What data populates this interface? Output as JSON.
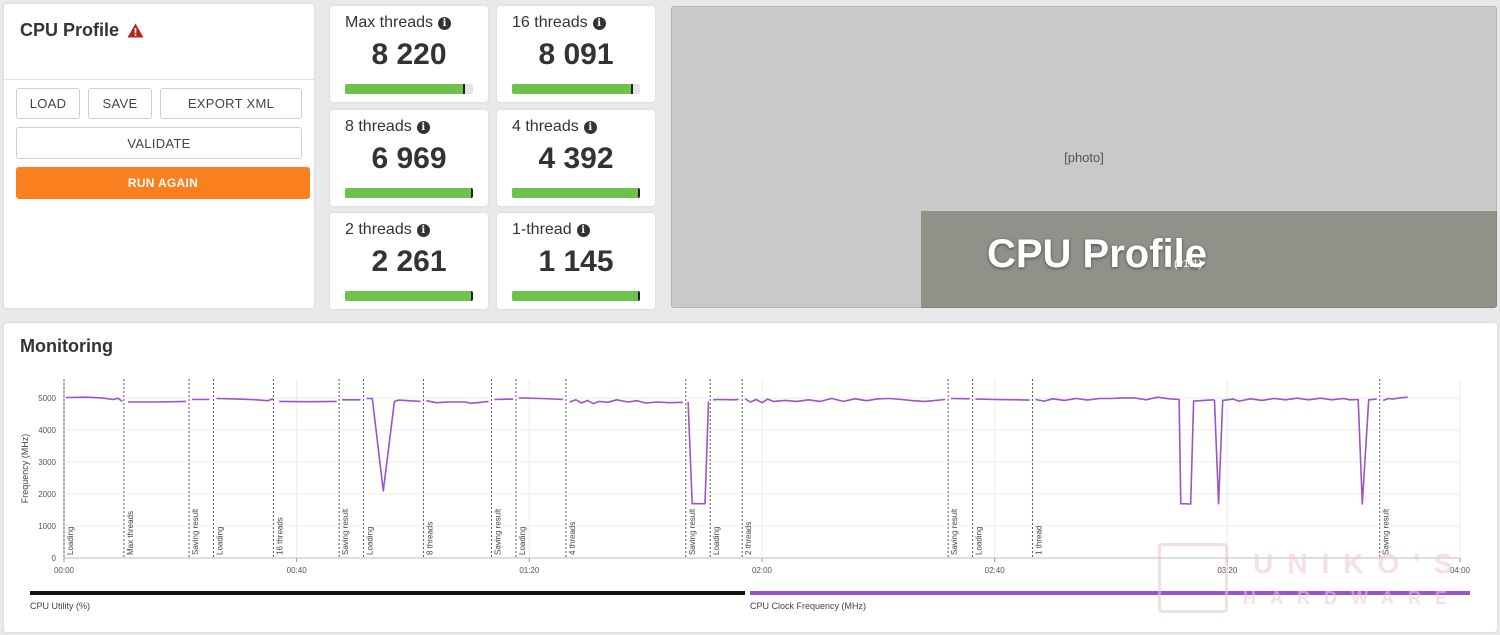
{
  "control": {
    "title": "CPU Profile",
    "buttons": {
      "load": "LOAD",
      "save": "SAVE",
      "export": "EXPORT XML",
      "validate": "VALIDATE",
      "run": "RUN AGAIN"
    }
  },
  "scores": [
    {
      "label": "Max threads",
      "value": "8 220",
      "bar_level": 0.93
    },
    {
      "label": "16 threads",
      "value": "8 091",
      "bar_level": 0.94
    },
    {
      "label": "8 threads",
      "value": "6 969",
      "bar_level": 0.99
    },
    {
      "label": "4 threads",
      "value": "4 392",
      "bar_level": 0.99
    },
    {
      "label": "2 threads",
      "value": "2 261",
      "bar_level": 0.99
    },
    {
      "label": "1-thread",
      "value": "1 145",
      "bar_level": 0.99
    }
  ],
  "banner": {
    "title": "CPU Profile",
    "version": "(v1.1)"
  },
  "monitoring": {
    "title": "Monitoring",
    "legend": {
      "utilization": "CPU Utility (%)",
      "clock": "CPU Clock Frequency (MHz)"
    },
    "colors": {
      "clock": "#9a55c8",
      "utilization": "#111111",
      "accent": "#fa7f1e",
      "score_bar": "#6cc24a"
    }
  },
  "watermark": {
    "brand": "UNIKO'S",
    "sub": "HARDWARE"
  },
  "chart_data": {
    "type": "line",
    "title": "",
    "xlabel": "",
    "ylabel": "Frequency (MHz)",
    "xlim": [
      0,
      240
    ],
    "ylim": [
      0,
      5600
    ],
    "xticks": [
      "00:00",
      "00:40",
      "01:20",
      "02:00",
      "02:40",
      "03:20",
      "04:00"
    ],
    "yticks": [
      0,
      1000,
      2000,
      3000,
      4000,
      5000
    ],
    "grid": true,
    "markers": [
      {
        "t": 0.0,
        "label": "Loading"
      },
      {
        "t": 10.3,
        "label": "Max threads"
      },
      {
        "t": 21.5,
        "label": "Saving result"
      },
      {
        "t": 25.7,
        "label": "Loading"
      },
      {
        "t": 36.0,
        "label": "16 threads"
      },
      {
        "t": 47.3,
        "label": "Saving result"
      },
      {
        "t": 51.5,
        "label": "Loading"
      },
      {
        "t": 61.8,
        "label": "8 threads"
      },
      {
        "t": 73.5,
        "label": "Saving result"
      },
      {
        "t": 77.7,
        "label": "Loading"
      },
      {
        "t": 86.3,
        "label": "4 threads"
      },
      {
        "t": 106.9,
        "label": "Saving result"
      },
      {
        "t": 111.1,
        "label": "Loading"
      },
      {
        "t": 116.6,
        "label": "2 threads"
      },
      {
        "t": 152.0,
        "label": "Saving result"
      },
      {
        "t": 156.2,
        "label": "Loading"
      },
      {
        "t": 166.5,
        "label": "1 thread"
      },
      {
        "t": 226.2,
        "label": "Saving result"
      }
    ],
    "series": [
      {
        "name": "CPU Clock Frequency (MHz)",
        "segments": [
          [
            [
              0.3,
              5020
            ],
            [
              4.0,
              5030
            ],
            [
              6.5,
              5010
            ],
            [
              8.5,
              4960
            ],
            [
              9.3,
              5000
            ],
            [
              10.0,
              4900
            ]
          ],
          [
            [
              11.0,
              4880
            ],
            [
              16.0,
              4880
            ],
            [
              21.0,
              4900
            ]
          ],
          [
            [
              22.0,
              4960
            ],
            [
              25.0,
              4960
            ]
          ],
          [
            [
              26.2,
              4990
            ],
            [
              30.0,
              4970
            ],
            [
              33.0,
              4950
            ],
            [
              35.0,
              4920
            ],
            [
              36.0,
              4980
            ]
          ],
          [
            [
              37.0,
              4900
            ],
            [
              42.0,
              4890
            ],
            [
              46.9,
              4900
            ]
          ],
          [
            [
              47.8,
              4950
            ],
            [
              51.0,
              4950
            ]
          ],
          [
            [
              52.0,
              4990
            ],
            [
              53.0,
              4990
            ],
            [
              54.9,
              2100
            ],
            [
              56.8,
              4900
            ],
            [
              57.5,
              4940
            ],
            [
              61.3,
              4900
            ]
          ],
          [
            [
              62.3,
              4920
            ],
            [
              64.0,
              4860
            ],
            [
              66.0,
              4880
            ],
            [
              69.0,
              4880
            ],
            [
              70.0,
              4840
            ],
            [
              73.0,
              4900
            ]
          ],
          [
            [
              74.0,
              4960
            ],
            [
              77.2,
              4970
            ]
          ],
          [
            [
              78.2,
              5010
            ],
            [
              82.0,
              4990
            ],
            [
              85.8,
              4960
            ]
          ],
          [
            [
              86.9,
              4880
            ],
            [
              88.0,
              4950
            ],
            [
              89.0,
              4850
            ],
            [
              90.0,
              4930
            ],
            [
              91.0,
              4830
            ],
            [
              92.0,
              4900
            ],
            [
              93.5,
              4870
            ],
            [
              95.0,
              4950
            ],
            [
              97.0,
              4880
            ],
            [
              98.5,
              4920
            ],
            [
              100.0,
              4850
            ],
            [
              102.0,
              4880
            ],
            [
              104.0,
              4860
            ],
            [
              106.4,
              4870
            ]
          ],
          [
            [
              107.3,
              4880
            ],
            [
              108.0,
              1700
            ],
            [
              110.2,
              1700
            ],
            [
              110.8,
              4900
            ]
          ],
          [
            [
              111.6,
              4950
            ],
            [
              112.5,
              4960
            ],
            [
              115.2,
              4950
            ],
            [
              116.0,
              4960
            ]
          ],
          [
            [
              117.1,
              4980
            ],
            [
              118.0,
              4880
            ],
            [
              119.0,
              4960
            ],
            [
              120.0,
              4860
            ],
            [
              121.0,
              4970
            ],
            [
              122.0,
              4900
            ],
            [
              124.0,
              4930
            ],
            [
              126.0,
              4900
            ],
            [
              128.0,
              4950
            ],
            [
              130.0,
              4900
            ],
            [
              132.0,
              4990
            ],
            [
              134.0,
              4900
            ],
            [
              136.0,
              4980
            ],
            [
              138.0,
              4920
            ],
            [
              140.0,
              4980
            ],
            [
              142.0,
              4990
            ],
            [
              144.0,
              4960
            ],
            [
              146.0,
              4920
            ],
            [
              148.0,
              4900
            ],
            [
              151.5,
              4960
            ]
          ],
          [
            [
              152.5,
              4990
            ],
            [
              155.7,
              4980
            ]
          ],
          [
            [
              156.7,
              4970
            ],
            [
              160.0,
              4960
            ],
            [
              164.0,
              4950
            ],
            [
              166.0,
              4940
            ]
          ],
          [
            [
              167.0,
              4960
            ],
            [
              168.5,
              4910
            ],
            [
              170.0,
              4980
            ],
            [
              172.0,
              4930
            ],
            [
              174.0,
              4990
            ],
            [
              176.0,
              4940
            ],
            [
              178.0,
              4990
            ],
            [
              180.0,
              4990
            ],
            [
              182.0,
              5010
            ],
            [
              184.0,
              5010
            ],
            [
              186.0,
              4950
            ],
            [
              188.0,
              5030
            ],
            [
              190.0,
              4980
            ],
            [
              191.7,
              4960
            ],
            [
              192.0,
              1700
            ],
            [
              193.7,
              1690
            ],
            [
              194.2,
              4910
            ],
            [
              196.0,
              4930
            ],
            [
              197.5,
              4950
            ],
            [
              197.8,
              4930
            ],
            [
              198.5,
              1700
            ],
            [
              199.2,
              4930
            ],
            [
              201.0,
              4970
            ],
            [
              202.0,
              4910
            ],
            [
              204.0,
              4980
            ],
            [
              206.0,
              4930
            ],
            [
              208.0,
              4990
            ],
            [
              210.0,
              4950
            ],
            [
              212.0,
              5000
            ],
            [
              214.0,
              4950
            ],
            [
              216.0,
              5000
            ],
            [
              218.0,
              4950
            ],
            [
              220.0,
              4990
            ],
            [
              221.0,
              4950
            ],
            [
              222.5,
              4960
            ],
            [
              223.2,
              1690
            ],
            [
              224.3,
              4950
            ],
            [
              225.7,
              4970
            ]
          ],
          [
            [
              226.8,
              4930
            ],
            [
              227.7,
              4990
            ],
            [
              228.5,
              4970
            ],
            [
              229.5,
              5010
            ],
            [
              231.0,
              5030
            ]
          ]
        ]
      }
    ]
  }
}
